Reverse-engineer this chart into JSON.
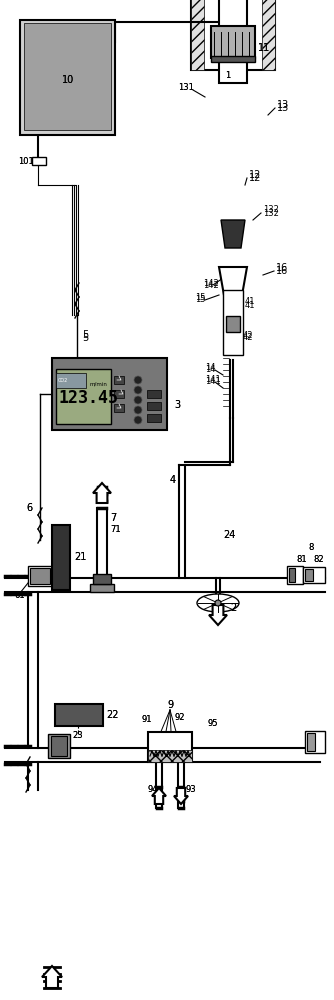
{
  "title": "",
  "bg_color": "#ffffff",
  "line_color": "#000000",
  "gray_color": "#808080",
  "light_gray": "#c0c0c0",
  "dark_gray": "#404040",
  "figsize": [
    3.34,
    10.0
  ],
  "dpi": 100
}
